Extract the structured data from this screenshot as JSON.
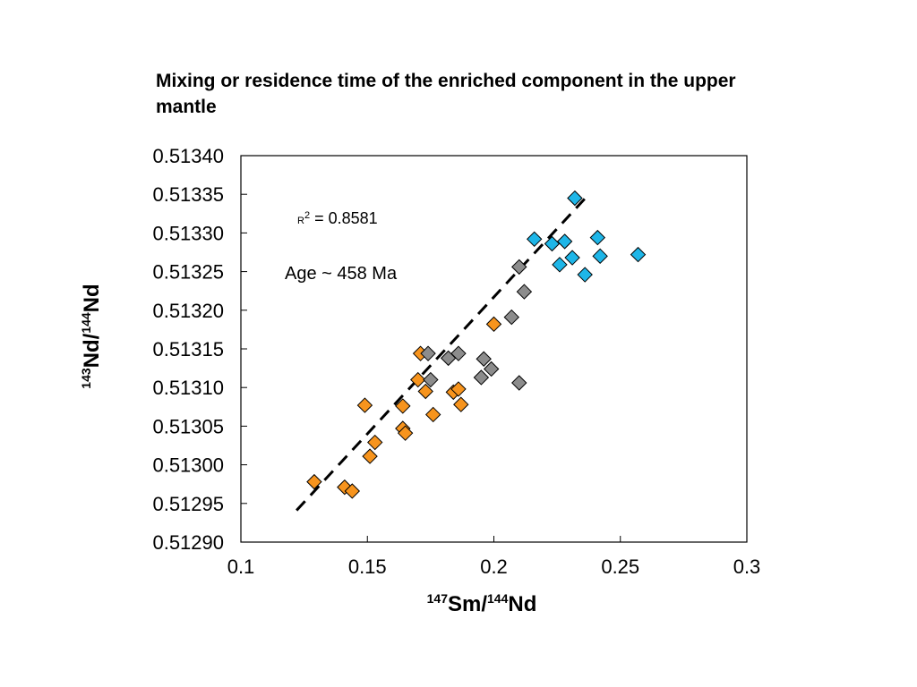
{
  "title": "Mixing or residence time of the enriched component in the upper mantle",
  "chart_data": {
    "type": "scatter",
    "xlabel": {
      "sup1": "147",
      "mid": "Sm/",
      "sup2": "144",
      "end": "Nd"
    },
    "ylabel": {
      "sup1": "143",
      "mid": "Nd/",
      "sup2": "144",
      "end": "Nd"
    },
    "xlim": [
      0.1,
      0.3
    ],
    "ylim": [
      0.5129,
      0.5134
    ],
    "x_ticks": [
      "0.1",
      "0.15",
      "0.2",
      "0.25",
      "0.3"
    ],
    "y_ticks": [
      "0.51290",
      "0.51295",
      "0.51300",
      "0.51305",
      "0.51310",
      "0.51315",
      "0.51320",
      "0.51325",
      "0.51330",
      "0.51335",
      "0.51340"
    ],
    "grid": false,
    "marker": "diamond",
    "series": [
      {
        "color": "#F7941D",
        "points": [
          [
            0.129,
            0.512978
          ],
          [
            0.141,
            0.512971
          ],
          [
            0.144,
            0.512966
          ],
          [
            0.149,
            0.513077
          ],
          [
            0.151,
            0.513011
          ],
          [
            0.153,
            0.513029
          ],
          [
            0.164,
            0.513047
          ],
          [
            0.164,
            0.513076
          ],
          [
            0.165,
            0.513041
          ],
          [
            0.17,
            0.51311
          ],
          [
            0.171,
            0.513144
          ],
          [
            0.173,
            0.513095
          ],
          [
            0.176,
            0.513065
          ],
          [
            0.184,
            0.513094
          ],
          [
            0.186,
            0.513098
          ],
          [
            0.187,
            0.513078
          ],
          [
            0.2,
            0.513182
          ]
        ]
      },
      {
        "color": "#8C8C8C",
        "points": [
          [
            0.174,
            0.513144
          ],
          [
            0.175,
            0.51311
          ],
          [
            0.182,
            0.513138
          ],
          [
            0.186,
            0.513144
          ],
          [
            0.195,
            0.513113
          ],
          [
            0.196,
            0.513137
          ],
          [
            0.199,
            0.513124
          ],
          [
            0.207,
            0.513191
          ],
          [
            0.21,
            0.513106
          ],
          [
            0.21,
            0.513256
          ],
          [
            0.212,
            0.513224
          ]
        ]
      },
      {
        "color": "#1EB6E8",
        "points": [
          [
            0.216,
            0.513292
          ],
          [
            0.223,
            0.513286
          ],
          [
            0.226,
            0.513259
          ],
          [
            0.228,
            0.513289
          ],
          [
            0.231,
            0.513268
          ],
          [
            0.232,
            0.513345
          ],
          [
            0.236,
            0.513246
          ],
          [
            0.241,
            0.513294
          ],
          [
            0.242,
            0.51327
          ],
          [
            0.257,
            0.513272
          ]
        ]
      }
    ],
    "trendline": {
      "x": [
        0.122,
        0.237
      ],
      "y": [
        0.512941,
        0.513348
      ],
      "style": "dashed"
    },
    "annotations": {
      "r2_label": "R",
      "r2_sup": "2",
      "r2_value": " = 0.8581",
      "age": "Age ~ 458 Ma"
    }
  }
}
